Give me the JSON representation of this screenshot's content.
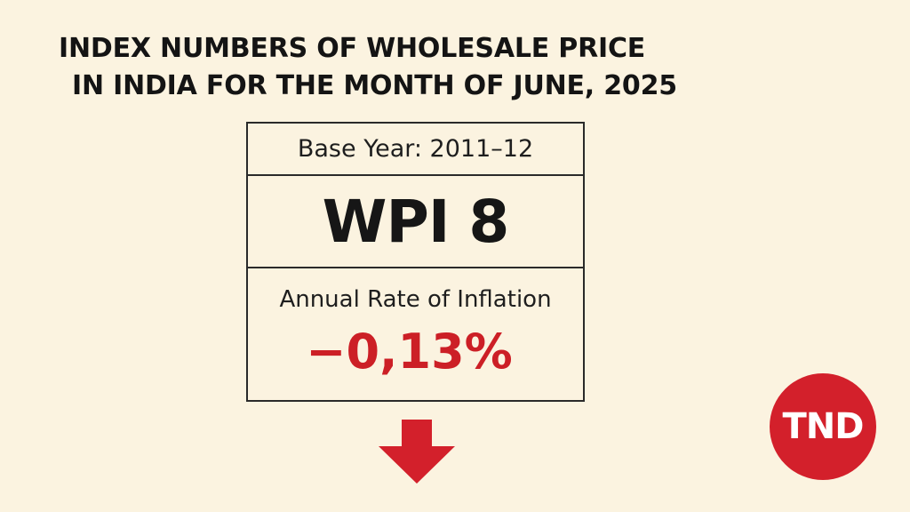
{
  "headline": {
    "line1": "INDEX NUMBERS OF WHOLESALE PRICE",
    "line2": "IN INDIA FOR THE MONTH OF JUNE, 2025"
  },
  "card": {
    "base_year": "Base Year: 2011–12",
    "wpi": "WPI 8",
    "inflation_label": "Annual Rate of Inflation",
    "inflation_value": "−0,13%"
  },
  "arrow": {
    "icon": "down-arrow-icon",
    "color": "#d3202b"
  },
  "logo": {
    "text": "TND",
    "color": "#d3202b"
  },
  "colors": {
    "background": "#fbf3e0",
    "text": "#1b1b1b",
    "accent": "#cc1f26"
  }
}
